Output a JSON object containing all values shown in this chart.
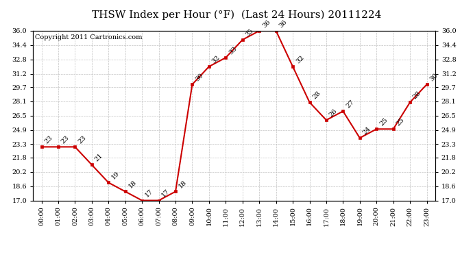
{
  "title": "THSW Index per Hour (°F)  (Last 24 Hours) 20111224",
  "copyright": "Copyright 2011 Cartronics.com",
  "hours": [
    "00:00",
    "01:00",
    "02:00",
    "03:00",
    "04:00",
    "05:00",
    "06:00",
    "07:00",
    "08:00",
    "09:00",
    "10:00",
    "11:00",
    "12:00",
    "13:00",
    "14:00",
    "15:00",
    "16:00",
    "17:00",
    "18:00",
    "19:00",
    "20:00",
    "21:00",
    "22:00",
    "23:00"
  ],
  "values": [
    23,
    23,
    23,
    21,
    19,
    18,
    17,
    17,
    18,
    30,
    32,
    33,
    35,
    36,
    36,
    32,
    28,
    26,
    27,
    24,
    25,
    25,
    28,
    30
  ],
  "ylim_min": 17.0,
  "ylim_max": 36.0,
  "yticks": [
    17.0,
    18.6,
    20.2,
    21.8,
    23.3,
    24.9,
    26.5,
    28.1,
    29.7,
    31.2,
    32.8,
    34.4,
    36.0
  ],
  "ytick_labels": [
    "17.0",
    "18.6",
    "20.2",
    "21.8",
    "23.3",
    "24.9",
    "26.5",
    "28.1",
    "29.7",
    "31.2",
    "32.8",
    "34.4",
    "36.0"
  ],
  "line_color": "#cc0000",
  "marker_color": "#cc0000",
  "bg_color": "#ffffff",
  "grid_color": "#bbbbbb",
  "title_fontsize": 11,
  "copyright_fontsize": 7,
  "tick_fontsize": 7,
  "annot_fontsize": 7
}
